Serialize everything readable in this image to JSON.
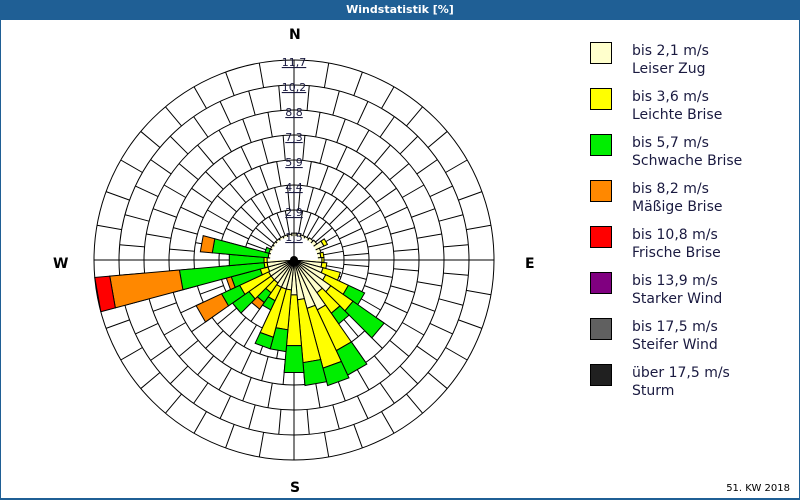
{
  "header": {
    "title": "Windstatistik [%]"
  },
  "compass": {
    "n": "N",
    "e": "E",
    "s": "S",
    "w": "W"
  },
  "footer": {
    "period": "51. KW 2018"
  },
  "legend": [
    {
      "range": "bis 2,1 m/s",
      "name": "Leiser Zug",
      "color": "#ffffcc"
    },
    {
      "range": "bis 3,6 m/s",
      "name": "Leichte Brise",
      "color": "#ffff00"
    },
    {
      "range": "bis 5,7 m/s",
      "name": "Schwache Brise",
      "color": "#00ee00"
    },
    {
      "range": "bis 8,2 m/s",
      "name": "Mäßige Brise",
      "color": "#ff8800"
    },
    {
      "range": "bis 10,8 m/s",
      "name": "Frische Brise",
      "color": "#ff0000"
    },
    {
      "range": "bis 13,9 m/s",
      "name": "Starker Wind",
      "color": "#800080"
    },
    {
      "range": "bis 17,5 m/s",
      "name": "Steifer Wind",
      "color": "#606060"
    },
    {
      "range": "über 17,5 m/s",
      "name": "Sturm",
      "color": "#202020"
    }
  ],
  "chart_data": {
    "type": "polar-stacked-bar",
    "title": "Windstatistik [%]",
    "subtitle": "51. KW 2018",
    "ring_labels": [
      "1,5",
      "2,9",
      "4,4",
      "5,9",
      "7,3",
      "8,8",
      "10,2",
      "11,7"
    ],
    "rlim": [
      0,
      11.7
    ],
    "calm_radius_pct": 1.46,
    "sector_width_deg": 10,
    "categories": [
      "bis 2,1 m/s",
      "bis 3,6 m/s",
      "bis 5,7 m/s",
      "bis 8,2 m/s",
      "bis 10,8 m/s",
      "bis 13,9 m/s",
      "bis 17,5 m/s",
      "über 17,5 m/s"
    ],
    "sectors_cumulative_pct": [
      {
        "dir": 0,
        "cum": [
          1.58
        ]
      },
      {
        "dir": 10,
        "cum": [
          1.58
        ]
      },
      {
        "dir": 20,
        "cum": [
          1.52
        ]
      },
      {
        "dir": 30,
        "cum": [
          1.52
        ]
      },
      {
        "dir": 40,
        "cum": [
          1.58
        ]
      },
      {
        "dir": 50,
        "cum": [
          1.64
        ]
      },
      {
        "dir": 60,
        "cum": [
          1.93,
          2.16
        ]
      },
      {
        "dir": 70,
        "cum": [
          1.64
        ]
      },
      {
        "dir": 80,
        "cum": [
          1.58,
          1.76
        ]
      },
      {
        "dir": 90,
        "cum": [
          1.64,
          1.76
        ]
      },
      {
        "dir": 100,
        "cum": [
          1.64,
          1.93
        ]
      },
      {
        "dir": 110,
        "cum": [
          1.76,
          2.81
        ]
      },
      {
        "dir": 120,
        "cum": [
          2.05,
          3.51,
          4.56
        ]
      },
      {
        "dir": 130,
        "cum": [
          2.63,
          4.21,
          6.44
        ]
      },
      {
        "dir": 140,
        "cum": [
          2.34,
          3.8,
          4.56
        ]
      },
      {
        "dir": 150,
        "cum": [
          3.22,
          5.85,
          7.43
        ]
      },
      {
        "dir": 160,
        "cum": [
          2.93,
          6.55,
          7.61
        ]
      },
      {
        "dir": 170,
        "cum": [
          2.34,
          6.03,
          7.37
        ]
      },
      {
        "dir": 180,
        "cum": [
          2.05,
          5.03,
          6.61
        ]
      },
      {
        "dir": 190,
        "cum": [
          1.76,
          4.1,
          5.38
        ]
      },
      {
        "dir": 200,
        "cum": [
          1.76,
          4.68,
          5.38
        ]
      },
      {
        "dir": 210,
        "cum": [
          1.76,
          2.63,
          3.22
        ]
      },
      {
        "dir": 220,
        "cum": [
          1.64,
          2.34,
          3.04,
          3.51
        ]
      },
      {
        "dir": 230,
        "cum": [
          1.64,
          3.22,
          4.39
        ]
      },
      {
        "dir": 240,
        "cum": [
          1.64,
          3.51,
          4.68,
          6.32
        ]
      },
      {
        "dir": 250,
        "cum": [
          1.58,
          2.05,
          3.8,
          4.1
        ]
      },
      {
        "dir": 260,
        "cum": [
          1.58,
          1.76,
          6.73,
          10.82,
          11.7
        ]
      },
      {
        "dir": 270,
        "cum": [
          1.58,
          1.76,
          3.8
        ]
      },
      {
        "dir": 280,
        "cum": [
          1.52,
          1.52,
          4.8,
          5.5
        ]
      },
      {
        "dir": 290,
        "cum": [
          1.52,
          1.52,
          1.76
        ]
      },
      {
        "dir": 300,
        "cum": [
          1.52
        ]
      },
      {
        "dir": 310,
        "cum": [
          1.52
        ]
      },
      {
        "dir": 320,
        "cum": [
          1.52
        ]
      },
      {
        "dir": 330,
        "cum": [
          1.52
        ]
      },
      {
        "dir": 340,
        "cum": [
          1.52
        ]
      },
      {
        "dir": 350,
        "cum": [
          1.52
        ]
      }
    ],
    "legend_position": "right",
    "grid": true
  }
}
